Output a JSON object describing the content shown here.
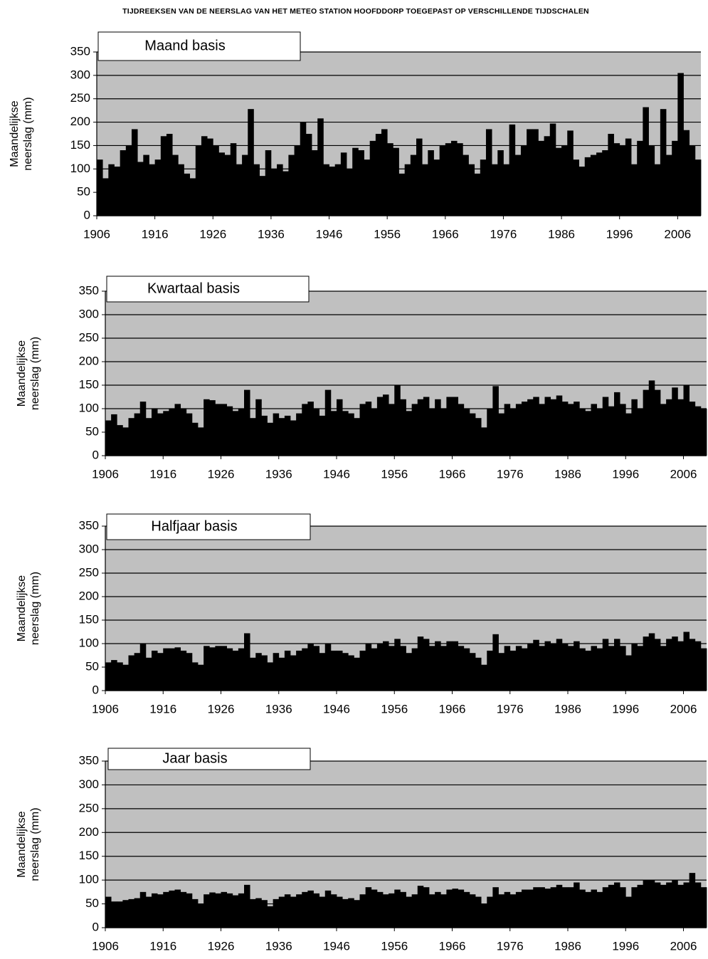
{
  "title": "TIJDREEKSEN VAN DE NEERSLAG VAN HET METEO STATION HOOFDDORP TOEGEPAST OP VERSCHILLENDE TIJDSCHALEN",
  "chart_data": [
    {
      "type": "bar",
      "title": "Maand basis",
      "ylabel": [
        "Maandelijkse",
        "neerslag (mm)"
      ],
      "color": "#000000",
      "background": "#c0c0c0",
      "grid": true,
      "x": [
        1906,
        1907,
        1908,
        1909,
        1910,
        1911,
        1912,
        1913,
        1914,
        1915,
        1916,
        1917,
        1918,
        1919,
        1920,
        1921,
        1922,
        1923,
        1924,
        1925,
        1926,
        1927,
        1928,
        1929,
        1930,
        1931,
        1932,
        1933,
        1934,
        1935,
        1936,
        1937,
        1938,
        1939,
        1940,
        1941,
        1942,
        1943,
        1944,
        1945,
        1946,
        1947,
        1948,
        1949,
        1950,
        1951,
        1952,
        1953,
        1954,
        1955,
        1956,
        1957,
        1958,
        1959,
        1960,
        1961,
        1962,
        1963,
        1964,
        1965,
        1966,
        1967,
        1968,
        1969,
        1970,
        1971,
        1972,
        1973,
        1974,
        1975,
        1976,
        1977,
        1978,
        1979,
        1980,
        1981,
        1982,
        1983,
        1984,
        1985,
        1986,
        1987,
        1988,
        1989,
        1990,
        1991,
        1992,
        1993,
        1994,
        1995,
        1996,
        1997,
        1998,
        1999,
        2000,
        2001,
        2002,
        2003,
        2004,
        2005,
        2006,
        2007,
        2008,
        2009
      ],
      "values": [
        120,
        80,
        110,
        105,
        140,
        150,
        185,
        115,
        130,
        110,
        120,
        170,
        175,
        130,
        110,
        90,
        80,
        150,
        170,
        165,
        150,
        135,
        130,
        155,
        110,
        130,
        228,
        110,
        85,
        140,
        100,
        110,
        95,
        130,
        150,
        200,
        175,
        140,
        208,
        110,
        105,
        110,
        135,
        100,
        145,
        140,
        120,
        160,
        175,
        185,
        155,
        145,
        90,
        110,
        130,
        165,
        110,
        140,
        120,
        150,
        155,
        160,
        155,
        130,
        110,
        90,
        120,
        185,
        110,
        140,
        110,
        195,
        130,
        150,
        185,
        185,
        160,
        170,
        197,
        145,
        150,
        182,
        120,
        105,
        125,
        130,
        135,
        140,
        175,
        155,
        150,
        165,
        110,
        160,
        232,
        150,
        110,
        228,
        130,
        160,
        305,
        183,
        150,
        120
      ],
      "xlim": [
        1906,
        2010
      ],
      "xticks": [
        1906,
        1916,
        1926,
        1936,
        1946,
        1956,
        1966,
        1976,
        1986,
        1996,
        2006
      ],
      "ylim": [
        0,
        350
      ],
      "yticks": [
        0,
        50,
        100,
        150,
        200,
        250,
        300,
        350
      ]
    },
    {
      "type": "bar",
      "title": "Kwartaal basis",
      "ylabel": [
        "Maandelijkse",
        "neerslag (mm)"
      ],
      "color": "#000000",
      "background": "#c0c0c0",
      "grid": true,
      "x": [
        1906,
        1907,
        1908,
        1909,
        1910,
        1911,
        1912,
        1913,
        1914,
        1915,
        1916,
        1917,
        1918,
        1919,
        1920,
        1921,
        1922,
        1923,
        1924,
        1925,
        1926,
        1927,
        1928,
        1929,
        1930,
        1931,
        1932,
        1933,
        1934,
        1935,
        1936,
        1937,
        1938,
        1939,
        1940,
        1941,
        1942,
        1943,
        1944,
        1945,
        1946,
        1947,
        1948,
        1949,
        1950,
        1951,
        1952,
        1953,
        1954,
        1955,
        1956,
        1957,
        1958,
        1959,
        1960,
        1961,
        1962,
        1963,
        1964,
        1965,
        1966,
        1967,
        1968,
        1969,
        1970,
        1971,
        1972,
        1973,
        1974,
        1975,
        1976,
        1977,
        1978,
        1979,
        1980,
        1981,
        1982,
        1983,
        1984,
        1985,
        1986,
        1987,
        1988,
        1989,
        1990,
        1991,
        1992,
        1993,
        1994,
        1995,
        1996,
        1997,
        1998,
        1999,
        2000,
        2001,
        2002,
        2003,
        2004,
        2005,
        2006,
        2007,
        2008,
        2009
      ],
      "values": [
        75,
        88,
        65,
        60,
        80,
        90,
        115,
        80,
        100,
        90,
        95,
        100,
        110,
        100,
        90,
        70,
        60,
        120,
        118,
        110,
        110,
        105,
        95,
        100,
        140,
        80,
        120,
        85,
        70,
        90,
        80,
        85,
        75,
        90,
        110,
        115,
        100,
        85,
        140,
        95,
        120,
        95,
        90,
        80,
        110,
        115,
        100,
        125,
        130,
        110,
        150,
        120,
        95,
        110,
        120,
        125,
        100,
        120,
        100,
        125,
        125,
        110,
        100,
        90,
        80,
        60,
        100,
        148,
        90,
        110,
        100,
        110,
        115,
        120,
        125,
        110,
        125,
        120,
        128,
        115,
        110,
        115,
        100,
        95,
        110,
        100,
        125,
        105,
        135,
        110,
        90,
        120,
        100,
        140,
        160,
        140,
        110,
        120,
        145,
        120,
        150,
        115,
        105,
        100
      ],
      "xlim": [
        1906,
        2010
      ],
      "xticks": [
        1906,
        1916,
        1926,
        1936,
        1946,
        1956,
        1966,
        1976,
        1986,
        1996,
        2006
      ],
      "ylim": [
        0,
        350
      ],
      "yticks": [
        0,
        50,
        100,
        150,
        200,
        250,
        300,
        350
      ]
    },
    {
      "type": "bar",
      "title": "Halfjaar basis",
      "ylabel": [
        "Maandelijkse",
        "neerslag (mm)"
      ],
      "color": "#000000",
      "background": "#c0c0c0",
      "grid": true,
      "x": [
        1906,
        1907,
        1908,
        1909,
        1910,
        1911,
        1912,
        1913,
        1914,
        1915,
        1916,
        1917,
        1918,
        1919,
        1920,
        1921,
        1922,
        1923,
        1924,
        1925,
        1926,
        1927,
        1928,
        1929,
        1930,
        1931,
        1932,
        1933,
        1934,
        1935,
        1936,
        1937,
        1938,
        1939,
        1940,
        1941,
        1942,
        1943,
        1944,
        1945,
        1946,
        1947,
        1948,
        1949,
        1950,
        1951,
        1952,
        1953,
        1954,
        1955,
        1956,
        1957,
        1958,
        1959,
        1960,
        1961,
        1962,
        1963,
        1964,
        1965,
        1966,
        1967,
        1968,
        1969,
        1970,
        1971,
        1972,
        1973,
        1974,
        1975,
        1976,
        1977,
        1978,
        1979,
        1980,
        1981,
        1982,
        1983,
        1984,
        1985,
        1986,
        1987,
        1988,
        1989,
        1990,
        1991,
        1992,
        1993,
        1994,
        1995,
        1996,
        1997,
        1998,
        1999,
        2000,
        2001,
        2002,
        2003,
        2004,
        2005,
        2006,
        2007,
        2008,
        2009
      ],
      "values": [
        60,
        65,
        60,
        55,
        75,
        80,
        100,
        70,
        85,
        80,
        90,
        90,
        92,
        85,
        80,
        60,
        55,
        95,
        92,
        95,
        95,
        90,
        85,
        90,
        122,
        70,
        80,
        75,
        60,
        80,
        70,
        85,
        75,
        85,
        90,
        100,
        95,
        80,
        100,
        85,
        85,
        80,
        75,
        70,
        85,
        100,
        90,
        100,
        105,
        95,
        110,
        95,
        80,
        90,
        115,
        110,
        95,
        105,
        95,
        105,
        105,
        95,
        90,
        80,
        70,
        55,
        85,
        120,
        80,
        95,
        85,
        95,
        90,
        100,
        108,
        95,
        105,
        100,
        110,
        100,
        95,
        105,
        90,
        85,
        95,
        90,
        110,
        95,
        110,
        95,
        75,
        100,
        95,
        115,
        122,
        110,
        95,
        110,
        115,
        105,
        125,
        110,
        105,
        90
      ],
      "xlim": [
        1906,
        2010
      ],
      "xticks": [
        1906,
        1916,
        1926,
        1936,
        1946,
        1956,
        1966,
        1976,
        1986,
        1996,
        2006
      ],
      "ylim": [
        0,
        350
      ],
      "yticks": [
        0,
        50,
        100,
        150,
        200,
        250,
        300,
        350
      ]
    },
    {
      "type": "bar",
      "title": "Jaar basis",
      "ylabel": [
        "Maandelijkse",
        "neerslag (mm)"
      ],
      "color": "#000000",
      "background": "#c0c0c0",
      "grid": true,
      "x": [
        1906,
        1907,
        1908,
        1909,
        1910,
        1911,
        1912,
        1913,
        1914,
        1915,
        1916,
        1917,
        1918,
        1919,
        1920,
        1921,
        1922,
        1923,
        1924,
        1925,
        1926,
        1927,
        1928,
        1929,
        1930,
        1931,
        1932,
        1933,
        1934,
        1935,
        1936,
        1937,
        1938,
        1939,
        1940,
        1941,
        1942,
        1943,
        1944,
        1945,
        1946,
        1947,
        1948,
        1949,
        1950,
        1951,
        1952,
        1953,
        1954,
        1955,
        1956,
        1957,
        1958,
        1959,
        1960,
        1961,
        1962,
        1963,
        1964,
        1965,
        1966,
        1967,
        1968,
        1969,
        1970,
        1971,
        1972,
        1973,
        1974,
        1975,
        1976,
        1977,
        1978,
        1979,
        1980,
        1981,
        1982,
        1983,
        1984,
        1985,
        1986,
        1987,
        1988,
        1989,
        1990,
        1991,
        1992,
        1993,
        1994,
        1995,
        1996,
        1997,
        1998,
        1999,
        2000,
        2001,
        2002,
        2003,
        2004,
        2005,
        2006,
        2007,
        2008,
        2009
      ],
      "values": [
        65,
        55,
        55,
        58,
        60,
        62,
        75,
        65,
        72,
        70,
        75,
        78,
        80,
        75,
        72,
        60,
        50,
        70,
        74,
        72,
        75,
        72,
        68,
        72,
        90,
        60,
        62,
        58,
        45,
        60,
        65,
        70,
        65,
        70,
        75,
        78,
        72,
        65,
        78,
        70,
        65,
        60,
        62,
        58,
        70,
        85,
        80,
        75,
        70,
        72,
        80,
        75,
        65,
        70,
        88,
        85,
        70,
        75,
        70,
        80,
        82,
        80,
        75,
        70,
        65,
        50,
        65,
        85,
        70,
        75,
        70,
        75,
        80,
        80,
        85,
        85,
        82,
        85,
        90,
        85,
        85,
        95,
        80,
        75,
        80,
        75,
        85,
        90,
        95,
        85,
        65,
        85,
        90,
        100,
        100,
        95,
        90,
        95,
        100,
        90,
        95,
        115,
        95,
        85
      ],
      "xlim": [
        1906,
        2010
      ],
      "xticks": [
        1906,
        1916,
        1926,
        1936,
        1946,
        1956,
        1966,
        1976,
        1986,
        1996,
        2006
      ],
      "ylim": [
        0,
        350
      ],
      "yticks": [
        0,
        50,
        100,
        150,
        200,
        250,
        300,
        350
      ]
    }
  ]
}
